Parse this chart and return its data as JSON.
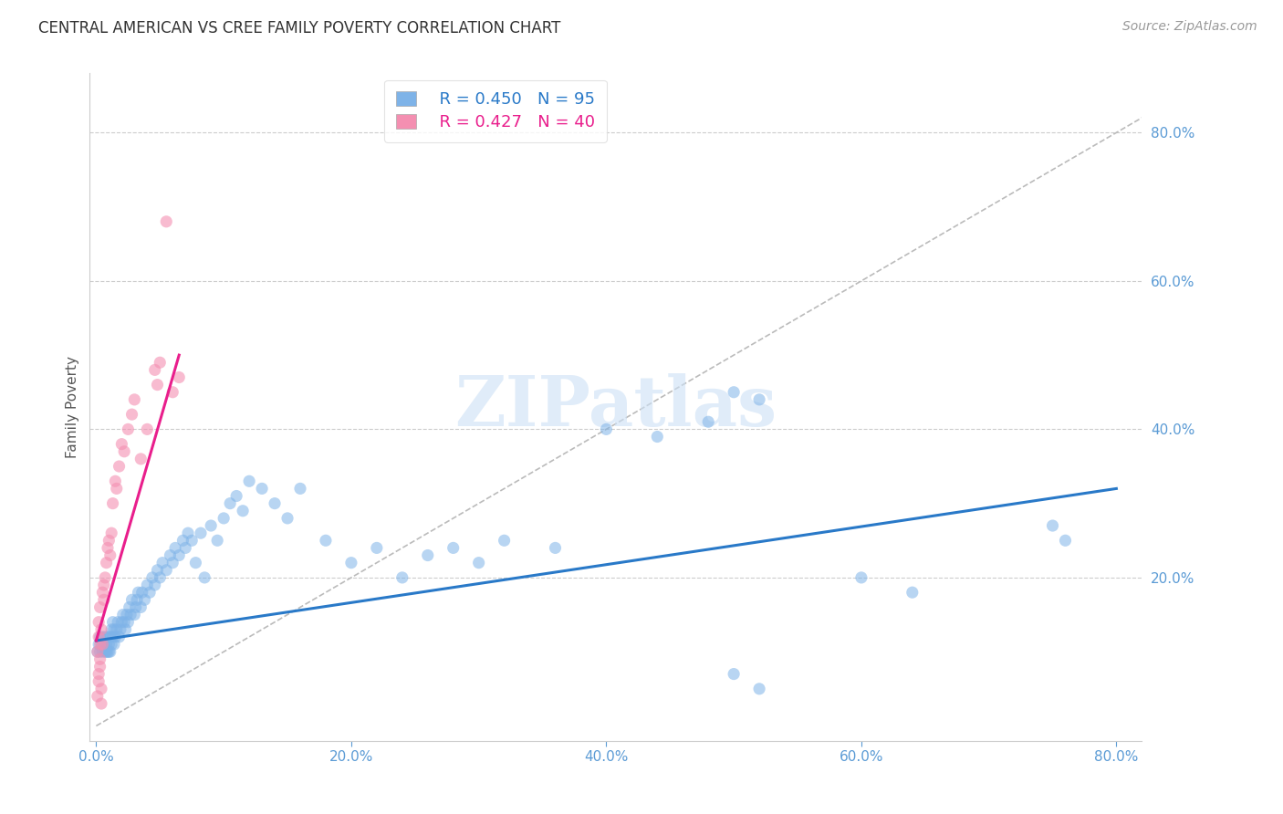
{
  "title": "CENTRAL AMERICAN VS CREE FAMILY POVERTY CORRELATION CHART",
  "source": "Source: ZipAtlas.com",
  "ylabel": "Family Poverty",
  "x_tick_labels": [
    "0.0%",
    "20.0%",
    "40.0%",
    "60.0%",
    "80.0%"
  ],
  "x_tick_vals": [
    0.0,
    0.2,
    0.4,
    0.6,
    0.8
  ],
  "y_tick_labels": [
    "20.0%",
    "40.0%",
    "60.0%",
    "80.0%"
  ],
  "y_tick_vals": [
    0.2,
    0.4,
    0.6,
    0.8
  ],
  "xlim": [
    -0.005,
    0.82
  ],
  "ylim": [
    -0.02,
    0.88
  ],
  "blue_color": "#7EB3E8",
  "pink_color": "#F48FB1",
  "blue_line_color": "#2979C8",
  "pink_line_color": "#E91E8C",
  "diag_color": "#BBBBBB",
  "tick_color": "#5B9BD5",
  "legend_blue_R": "R = 0.450",
  "legend_blue_N": "N = 95",
  "legend_pink_R": "R = 0.427",
  "legend_pink_N": "N = 40",
  "watermark": "ZIPatlas",
  "blue_scatter_x": [
    0.001,
    0.002,
    0.003,
    0.003,
    0.004,
    0.005,
    0.005,
    0.006,
    0.007,
    0.007,
    0.008,
    0.008,
    0.009,
    0.009,
    0.01,
    0.01,
    0.011,
    0.011,
    0.012,
    0.012,
    0.013,
    0.013,
    0.014,
    0.014,
    0.015,
    0.016,
    0.017,
    0.018,
    0.019,
    0.02,
    0.021,
    0.022,
    0.023,
    0.024,
    0.025,
    0.026,
    0.027,
    0.028,
    0.03,
    0.031,
    0.032,
    0.033,
    0.035,
    0.036,
    0.038,
    0.04,
    0.042,
    0.044,
    0.046,
    0.048,
    0.05,
    0.052,
    0.055,
    0.058,
    0.06,
    0.062,
    0.065,
    0.068,
    0.07,
    0.072,
    0.075,
    0.078,
    0.082,
    0.085,
    0.09,
    0.095,
    0.1,
    0.105,
    0.11,
    0.115,
    0.12,
    0.13,
    0.14,
    0.15,
    0.16,
    0.18,
    0.2,
    0.22,
    0.24,
    0.26,
    0.28,
    0.3,
    0.32,
    0.36,
    0.4,
    0.44,
    0.48,
    0.52,
    0.6,
    0.64,
    0.75,
    0.76,
    0.5,
    0.52,
    0.5
  ],
  "blue_scatter_y": [
    0.1,
    0.11,
    0.12,
    0.1,
    0.11,
    0.1,
    0.12,
    0.11,
    0.1,
    0.12,
    0.1,
    0.11,
    0.1,
    0.12,
    0.1,
    0.11,
    0.1,
    0.12,
    0.11,
    0.13,
    0.12,
    0.14,
    0.13,
    0.11,
    0.12,
    0.13,
    0.14,
    0.12,
    0.13,
    0.14,
    0.15,
    0.14,
    0.13,
    0.15,
    0.14,
    0.16,
    0.15,
    0.17,
    0.15,
    0.16,
    0.17,
    0.18,
    0.16,
    0.18,
    0.17,
    0.19,
    0.18,
    0.2,
    0.19,
    0.21,
    0.2,
    0.22,
    0.21,
    0.23,
    0.22,
    0.24,
    0.23,
    0.25,
    0.24,
    0.26,
    0.25,
    0.22,
    0.26,
    0.2,
    0.27,
    0.25,
    0.28,
    0.3,
    0.31,
    0.29,
    0.33,
    0.32,
    0.3,
    0.28,
    0.32,
    0.25,
    0.22,
    0.24,
    0.2,
    0.23,
    0.24,
    0.22,
    0.25,
    0.24,
    0.4,
    0.39,
    0.41,
    0.44,
    0.2,
    0.18,
    0.27,
    0.25,
    0.45,
    0.05,
    0.07
  ],
  "pink_scatter_x": [
    0.001,
    0.002,
    0.002,
    0.003,
    0.003,
    0.004,
    0.005,
    0.006,
    0.006,
    0.007,
    0.008,
    0.009,
    0.01,
    0.011,
    0.012,
    0.013,
    0.015,
    0.016,
    0.018,
    0.02,
    0.022,
    0.025,
    0.028,
    0.03,
    0.035,
    0.04,
    0.046,
    0.048,
    0.05,
    0.055,
    0.06,
    0.065,
    0.001,
    0.002,
    0.003,
    0.004,
    0.002,
    0.003,
    0.004,
    0.005
  ],
  "pink_scatter_y": [
    0.1,
    0.12,
    0.14,
    0.16,
    0.11,
    0.13,
    0.18,
    0.17,
    0.19,
    0.2,
    0.22,
    0.24,
    0.25,
    0.23,
    0.26,
    0.3,
    0.33,
    0.32,
    0.35,
    0.38,
    0.37,
    0.4,
    0.42,
    0.44,
    0.36,
    0.4,
    0.48,
    0.46,
    0.49,
    0.68,
    0.45,
    0.47,
    0.04,
    0.06,
    0.08,
    0.05,
    0.07,
    0.09,
    0.03,
    0.11
  ],
  "blue_line_x": [
    0.0,
    0.8
  ],
  "blue_line_y": [
    0.115,
    0.32
  ],
  "pink_line_x": [
    0.0,
    0.065
  ],
  "pink_line_y": [
    0.115,
    0.5
  ],
  "diag_line_x": [
    0.0,
    0.82
  ],
  "diag_line_y": [
    0.0,
    0.82
  ]
}
